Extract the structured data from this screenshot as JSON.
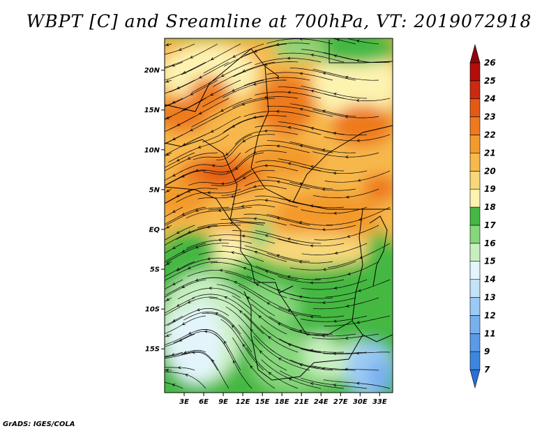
{
  "title": "WBPT [C] and Sreamline at 700hPa, VT: 2019072918",
  "credit": "GrADS: IGES/COLA",
  "map": {
    "lat_labels": [
      "20N",
      "15N",
      "10N",
      "5N",
      "EQ",
      "5S",
      "10S",
      "15S"
    ],
    "lon_labels": [
      "3E",
      "6E",
      "9E",
      "12E",
      "15E",
      "18E",
      "21E",
      "24E",
      "27E",
      "30E",
      "33E"
    ],
    "lat_range": [
      -20.5,
      24
    ],
    "lon_range": [
      0,
      35
    ]
  },
  "colorbar": {
    "labels": [
      "7",
      "9",
      "11",
      "12",
      "13",
      "14",
      "15",
      "16",
      "17",
      "18",
      "19",
      "20",
      "21",
      "22",
      "23",
      "24",
      "25",
      "26"
    ],
    "colors": [
      "#2a6fd6",
      "#3d86e0",
      "#5a9ae6",
      "#78b0ee",
      "#9ccaf5",
      "#c4e2f8",
      "#e3f5fb",
      "#c8efc0",
      "#86d67c",
      "#44b843",
      "#fdf3b0",
      "#f8d77a",
      "#f7b84c",
      "#f39a2c",
      "#ee7a1d",
      "#e35a15",
      "#cc2a10",
      "#b20d0b",
      "#8f0606"
    ]
  }
}
